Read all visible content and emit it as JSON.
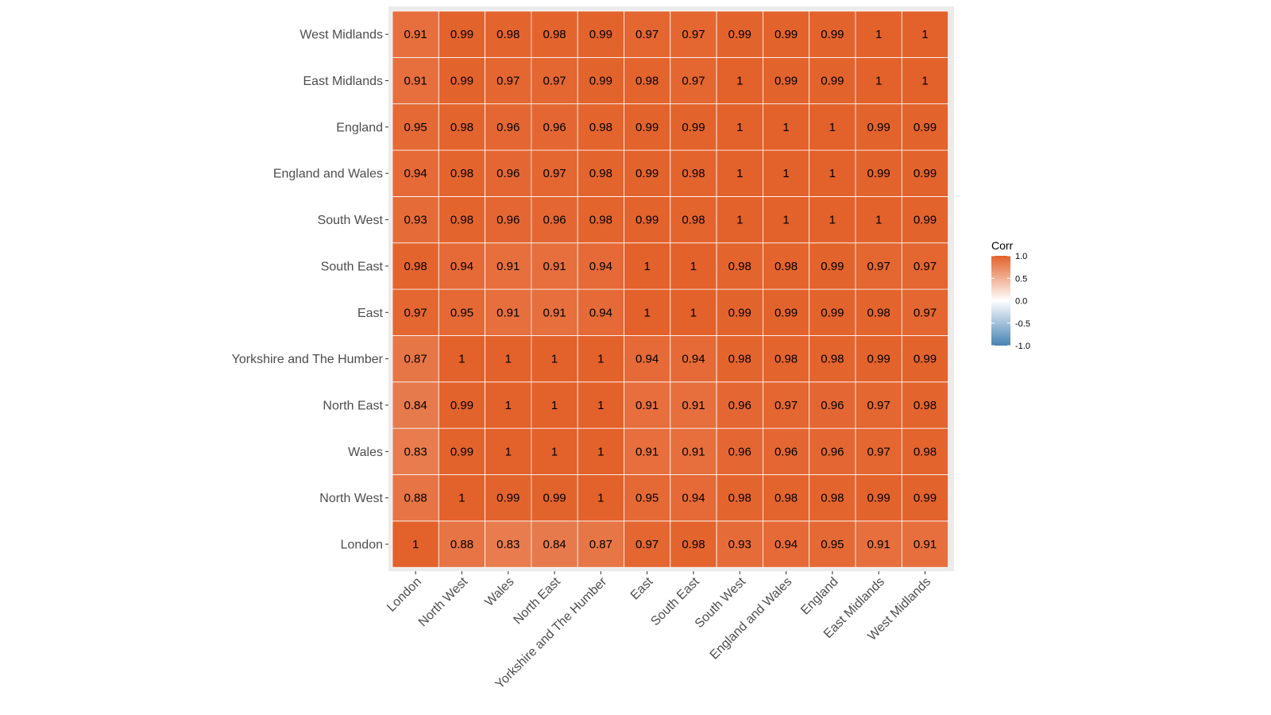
{
  "chart_data": {
    "type": "heatmap",
    "x_categories": [
      "London",
      "North West",
      "Wales",
      "North East",
      "Yorkshire and The Humber",
      "East",
      "South East",
      "South West",
      "England and Wales",
      "England",
      "East Midlands",
      "West Midlands"
    ],
    "y_categories": [
      "London",
      "North West",
      "Wales",
      "North East",
      "Yorkshire and The Humber",
      "East",
      "South East",
      "South West",
      "England and Wales",
      "England",
      "East Midlands",
      "West Midlands"
    ],
    "values": [
      [
        1,
        0.88,
        0.83,
        0.84,
        0.87,
        0.97,
        0.98,
        0.93,
        0.94,
        0.95,
        0.91,
        0.91
      ],
      [
        0.88,
        1,
        0.99,
        0.99,
        1,
        0.95,
        0.94,
        0.98,
        0.98,
        0.98,
        0.99,
        0.99
      ],
      [
        0.83,
        0.99,
        1,
        1,
        1,
        0.91,
        0.91,
        0.96,
        0.96,
        0.96,
        0.97,
        0.98
      ],
      [
        0.84,
        0.99,
        1,
        1,
        1,
        0.91,
        0.91,
        0.96,
        0.97,
        0.96,
        0.97,
        0.98
      ],
      [
        0.87,
        1,
        1,
        1,
        1,
        0.94,
        0.94,
        0.98,
        0.98,
        0.98,
        0.99,
        0.99
      ],
      [
        0.97,
        0.95,
        0.91,
        0.91,
        0.94,
        1,
        1,
        0.99,
        0.99,
        0.99,
        0.98,
        0.97
      ],
      [
        0.98,
        0.94,
        0.91,
        0.91,
        0.94,
        1,
        1,
        0.98,
        0.98,
        0.99,
        0.97,
        0.97
      ],
      [
        0.93,
        0.98,
        0.96,
        0.96,
        0.98,
        0.99,
        0.98,
        1,
        1,
        1,
        1,
        0.99
      ],
      [
        0.94,
        0.98,
        0.96,
        0.97,
        0.98,
        0.99,
        0.98,
        1,
        1,
        1,
        0.99,
        0.99
      ],
      [
        0.95,
        0.98,
        0.96,
        0.96,
        0.98,
        0.99,
        0.99,
        1,
        1,
        1,
        0.99,
        0.99
      ],
      [
        0.91,
        0.99,
        0.97,
        0.97,
        0.99,
        0.98,
        0.97,
        1,
        0.99,
        0.99,
        1,
        1
      ],
      [
        0.91,
        0.99,
        0.98,
        0.98,
        0.99,
        0.97,
        0.97,
        0.99,
        0.99,
        0.99,
        1,
        1
      ]
    ],
    "legend": {
      "title": "Corr",
      "ticks": [
        "1.0",
        "0.5",
        "0.0",
        "-0.5",
        "-1.0"
      ],
      "tick_values": [
        1.0,
        0.5,
        0.0,
        -0.5,
        -1.0
      ],
      "limits": [
        -1,
        1
      ],
      "colors": {
        "low": "#4682b4",
        "mid": "#ffffff",
        "high": "#e3612a"
      },
      "placement": "right"
    },
    "panel_background": "#ebebeb",
    "tile_border": "#ffffff"
  }
}
